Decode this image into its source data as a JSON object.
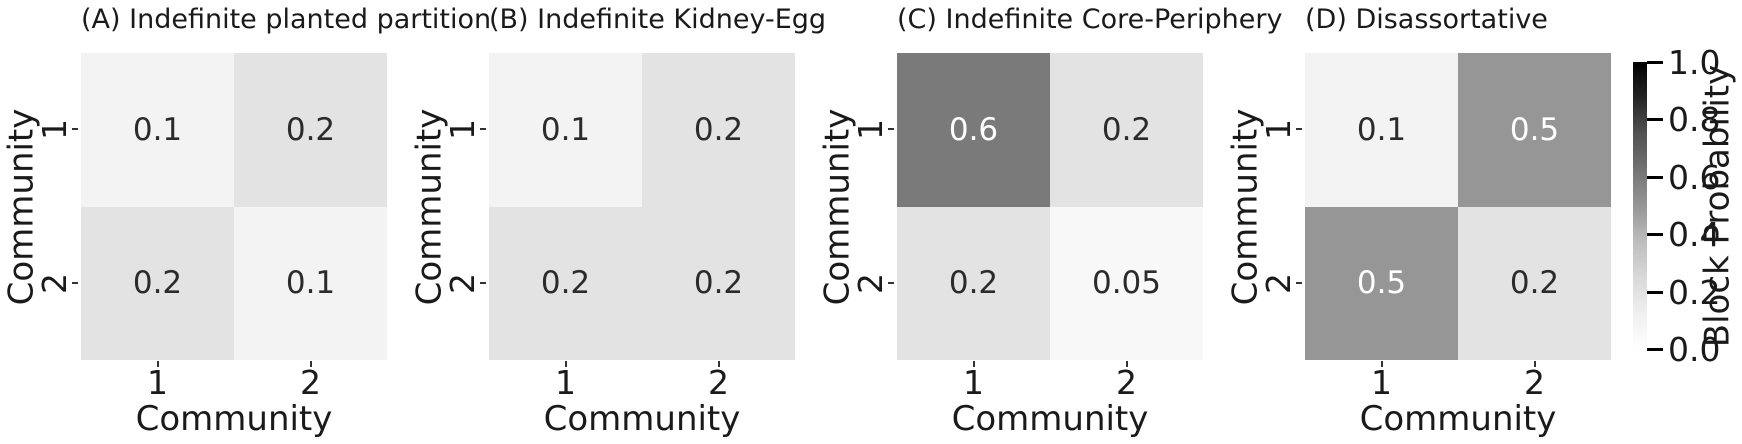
{
  "figure": {
    "background": "#ffffff",
    "axis_xlabel": "Community",
    "axis_ylabel": "Community"
  },
  "panels": [
    {
      "id": "A",
      "title": "(A) Indefinite planted partition",
      "xlabel": "Community",
      "ylabel": "Community",
      "x_ticks": [
        "1",
        "2"
      ],
      "y_ticks": [
        "1",
        "2"
      ],
      "cells": [
        {
          "label": "0.1",
          "bg": "#f3f3f3",
          "fg": "#2b2b2b"
        },
        {
          "label": "0.2",
          "bg": "#e3e3e3",
          "fg": "#2b2b2b"
        },
        {
          "label": "0.2",
          "bg": "#e3e3e3",
          "fg": "#2b2b2b"
        },
        {
          "label": "0.1",
          "bg": "#f3f3f3",
          "fg": "#2b2b2b"
        }
      ]
    },
    {
      "id": "B",
      "title": "(B) Indefinite Kidney-Egg",
      "xlabel": "Community",
      "ylabel": "Community",
      "x_ticks": [
        "1",
        "2"
      ],
      "y_ticks": [
        "1",
        "2"
      ],
      "cells": [
        {
          "label": "0.1",
          "bg": "#f3f3f3",
          "fg": "#2b2b2b"
        },
        {
          "label": "0.2",
          "bg": "#e3e3e3",
          "fg": "#2b2b2b"
        },
        {
          "label": "0.2",
          "bg": "#e3e3e3",
          "fg": "#2b2b2b"
        },
        {
          "label": "0.2",
          "bg": "#e3e3e3",
          "fg": "#2b2b2b"
        }
      ]
    },
    {
      "id": "C",
      "title": "(C) Indefinite Core-Periphery",
      "xlabel": "Community",
      "ylabel": "Community",
      "x_ticks": [
        "1",
        "2"
      ],
      "y_ticks": [
        "1",
        "2"
      ],
      "cells": [
        {
          "label": "0.6",
          "bg": "#7a7a7a",
          "fg": "#ffffff"
        },
        {
          "label": "0.2",
          "bg": "#e3e3e3",
          "fg": "#2b2b2b"
        },
        {
          "label": "0.2",
          "bg": "#e3e3e3",
          "fg": "#2b2b2b"
        },
        {
          "label": "0.05",
          "bg": "#f8f8f8",
          "fg": "#2b2b2b"
        }
      ]
    },
    {
      "id": "D",
      "title": "(D) Disassortative",
      "xlabel": "Community",
      "ylabel": "Community",
      "x_ticks": [
        "1",
        "2"
      ],
      "y_ticks": [
        "1",
        "2"
      ],
      "cells": [
        {
          "label": "0.1",
          "bg": "#f3f3f3",
          "fg": "#2b2b2b"
        },
        {
          "label": "0.5",
          "bg": "#969696",
          "fg": "#ffffff"
        },
        {
          "label": "0.5",
          "bg": "#969696",
          "fg": "#ffffff"
        },
        {
          "label": "0.2",
          "bg": "#e3e3e3",
          "fg": "#2b2b2b"
        }
      ]
    }
  ],
  "colorbar": {
    "label": "Block Probability",
    "ticks": [
      "1.0",
      "0.8",
      "0.6",
      "0.4",
      "0.2",
      "0.0"
    ],
    "top_color": "#000000",
    "bottom_color": "#ffffff"
  },
  "chart_data": [
    {
      "type": "heatmap",
      "title": "(A) Indefinite planted partition",
      "x_categories": [
        "1",
        "2"
      ],
      "y_categories": [
        "1",
        "2"
      ],
      "values": [
        [
          0.1,
          0.2
        ],
        [
          0.2,
          0.1
        ]
      ],
      "xlabel": "Community",
      "ylabel": "Community",
      "cmap": "Greys",
      "vmin": 0.0,
      "vmax": 1.0,
      "annotated": true
    },
    {
      "type": "heatmap",
      "title": "(B) Indefinite Kidney-Egg",
      "x_categories": [
        "1",
        "2"
      ],
      "y_categories": [
        "1",
        "2"
      ],
      "values": [
        [
          0.1,
          0.2
        ],
        [
          0.2,
          0.2
        ]
      ],
      "xlabel": "Community",
      "ylabel": "Community",
      "cmap": "Greys",
      "vmin": 0.0,
      "vmax": 1.0,
      "annotated": true
    },
    {
      "type": "heatmap",
      "title": "(C) Indefinite Core-Periphery",
      "x_categories": [
        "1",
        "2"
      ],
      "y_categories": [
        "1",
        "2"
      ],
      "values": [
        [
          0.6,
          0.2
        ],
        [
          0.2,
          0.05
        ]
      ],
      "xlabel": "Community",
      "ylabel": "Community",
      "cmap": "Greys",
      "vmin": 0.0,
      "vmax": 1.0,
      "annotated": true
    },
    {
      "type": "heatmap",
      "title": "(D) Disassortative",
      "x_categories": [
        "1",
        "2"
      ],
      "y_categories": [
        "1",
        "2"
      ],
      "values": [
        [
          0.1,
          0.5
        ],
        [
          0.5,
          0.2
        ]
      ],
      "xlabel": "Community",
      "ylabel": "Community",
      "cmap": "Greys",
      "vmin": 0.0,
      "vmax": 1.0,
      "annotated": true,
      "colorbar": {
        "label": "Block Probability",
        "ticks": [
          1.0,
          0.8,
          0.6,
          0.4,
          0.2,
          0.0
        ],
        "range": [
          0.0,
          1.0
        ]
      }
    }
  ]
}
